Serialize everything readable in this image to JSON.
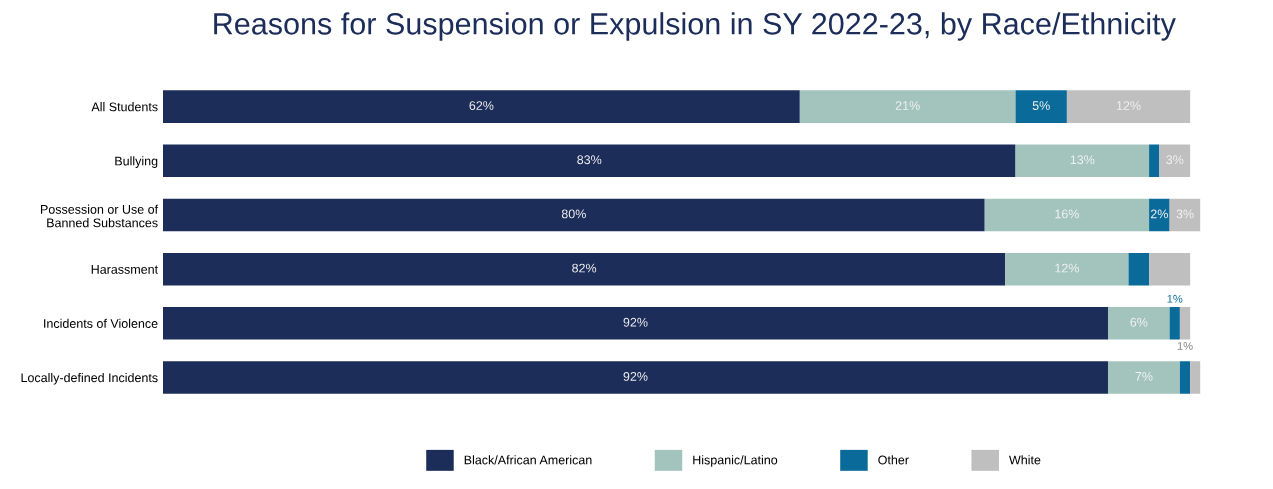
{
  "chart_data": {
    "type": "bar",
    "orientation": "horizontal",
    "stacked": true,
    "title": "Reasons for Suspension or Expulsion in SY 2022-23, by Race/Ethnicity",
    "categories": [
      "All Students",
      "Bullying",
      "Possession or Use of\nBanned Substances",
      "Harassment",
      "Incidents of Violence",
      "Locally-defined Incidents"
    ],
    "series": [
      {
        "name": "Black/African American",
        "color": "#1c2d5a",
        "values": [
          62,
          83,
          80,
          82,
          92,
          92
        ],
        "value_labels": [
          "62%",
          "83%",
          "80%",
          "82%",
          "92%",
          "92%"
        ]
      },
      {
        "name": "Hispanic/Latino",
        "color": "#a3c4bc",
        "values": [
          21,
          13,
          16,
          12,
          6,
          7
        ],
        "value_labels": [
          "21%",
          "13%",
          "16%",
          "12%",
          "6%",
          "7%"
        ]
      },
      {
        "name": "Other",
        "color": "#0a6b9a",
        "values": [
          5,
          1,
          2,
          2,
          1,
          1
        ],
        "value_labels": [
          "5%",
          null,
          "2%",
          null,
          "1%",
          null
        ]
      },
      {
        "name": "White",
        "color": "#bfbfbf",
        "values": [
          12,
          3,
          3,
          4,
          1,
          1
        ],
        "value_labels": [
          "12%",
          "3%",
          "3%",
          null,
          "1%",
          null
        ]
      }
    ],
    "legend": "bottom",
    "grid": false,
    "tick_labels": "y"
  }
}
